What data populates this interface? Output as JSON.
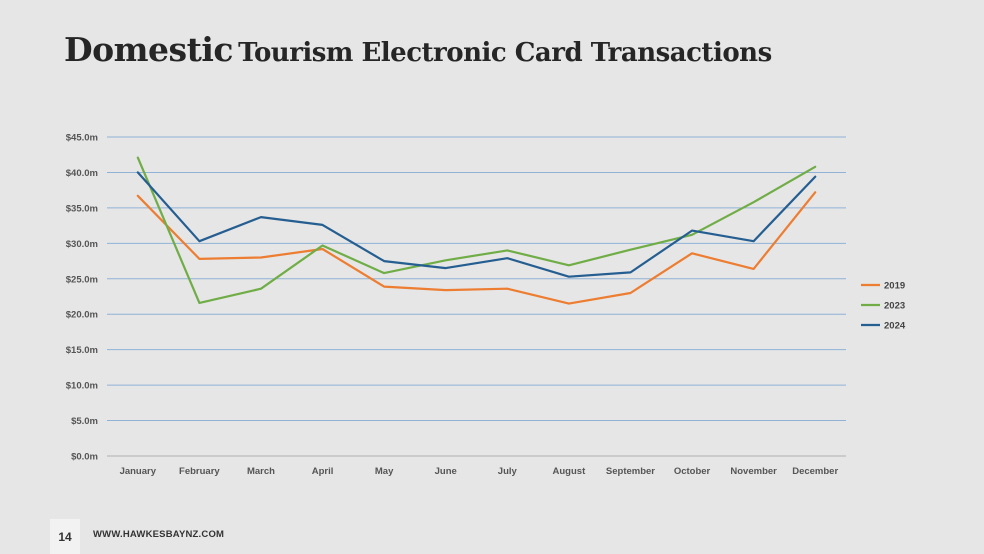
{
  "slide": {
    "title_main": "Domestic",
    "title_rest": "Tourism Electronic Card Transactions",
    "page_number": "14",
    "website": "WWW.HAWKESBAYNZ.COM"
  },
  "chart_data": {
    "type": "line",
    "title": "",
    "xlabel": "",
    "ylabel": "",
    "categories": [
      "January",
      "February",
      "March",
      "April",
      "May",
      "June",
      "July",
      "August",
      "September",
      "October",
      "November",
      "December"
    ],
    "y_ticks": [
      "$0.0m",
      "$5.0m",
      "$10.0m",
      "$15.0m",
      "$20.0m",
      "$25.0m",
      "$30.0m",
      "$35.0m",
      "$40.0m",
      "$45.0m"
    ],
    "ylim": [
      0,
      45
    ],
    "grid": true,
    "legend_position": "right",
    "series": [
      {
        "name": "2019",
        "color": "#ed7d31",
        "values": [
          36.7,
          27.8,
          28.0,
          29.2,
          23.9,
          23.4,
          23.6,
          21.5,
          23.0,
          28.6,
          26.4,
          37.2
        ]
      },
      {
        "name": "2023",
        "color": "#70ad47",
        "values": [
          42.1,
          21.6,
          23.6,
          29.7,
          25.8,
          27.6,
          29.0,
          26.9,
          29.1,
          31.2,
          35.8,
          40.8
        ]
      },
      {
        "name": "2024",
        "color": "#255e91",
        "values": [
          40.0,
          30.3,
          33.7,
          32.6,
          27.5,
          26.5,
          27.9,
          25.3,
          25.9,
          31.8,
          30.3,
          39.4
        ]
      }
    ]
  }
}
